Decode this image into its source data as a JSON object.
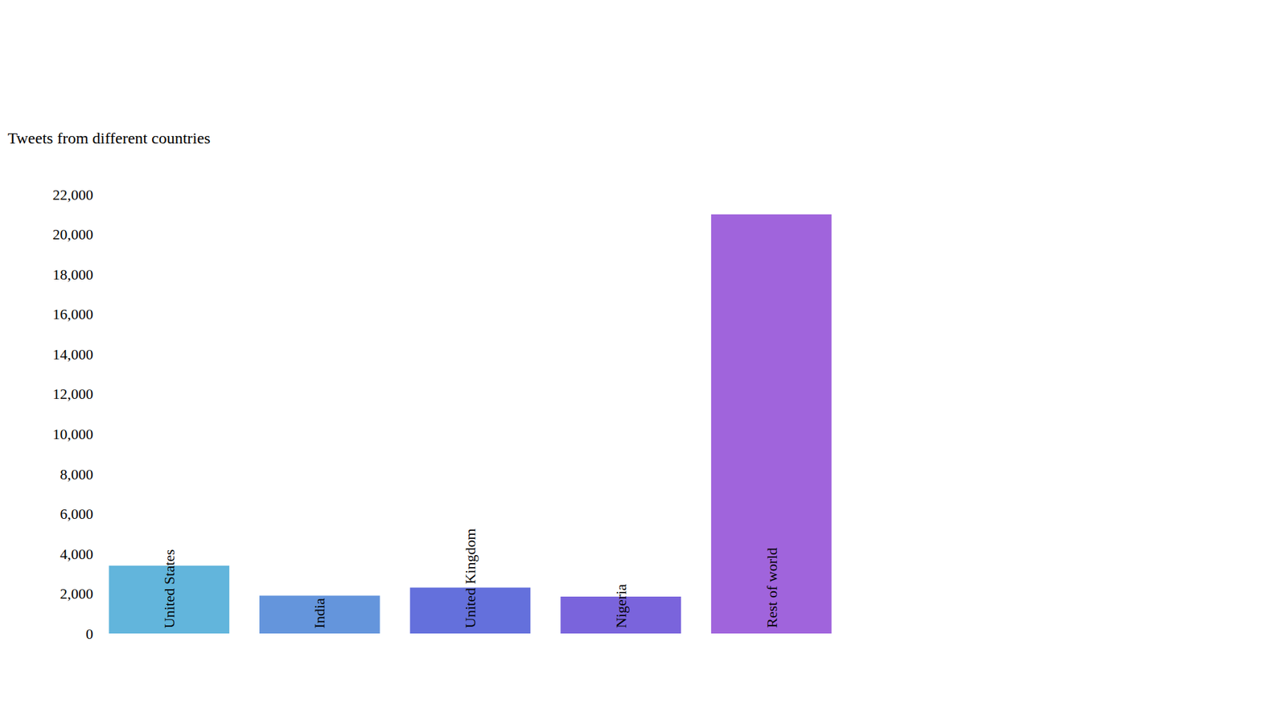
{
  "chart_data": {
    "type": "bar",
    "title": "Tweets from different countries",
    "categories": [
      "United States",
      "India",
      "United Kingdom",
      "Nigeria",
      "Rest of world"
    ],
    "values": [
      3400,
      1900,
      2300,
      1850,
      21000
    ],
    "colors": [
      "#62b5dc",
      "#6495dc",
      "#6470dc",
      "#7a64dc",
      "#a064dc"
    ],
    "ylim": [
      0,
      22000
    ],
    "yticks": [
      0,
      {
        "value": 2000,
        "label": "2,000"
      },
      {
        "value": 4000,
        "label": "4,000"
      },
      {
        "value": 6000,
        "label": "6,000"
      },
      {
        "value": 8000,
        "label": "8,000"
      },
      {
        "value": 10000,
        "label": "10,000"
      },
      {
        "value": 12000,
        "label": "12,000"
      },
      {
        "value": 14000,
        "label": "14,000"
      },
      {
        "value": 16000,
        "label": "16,000"
      },
      {
        "value": 18000,
        "label": "18,000"
      },
      {
        "value": 20000,
        "label": "20,000"
      },
      {
        "value": 22000,
        "label": "22,000"
      }
    ],
    "grid": false,
    "tick_labels": "y"
  }
}
